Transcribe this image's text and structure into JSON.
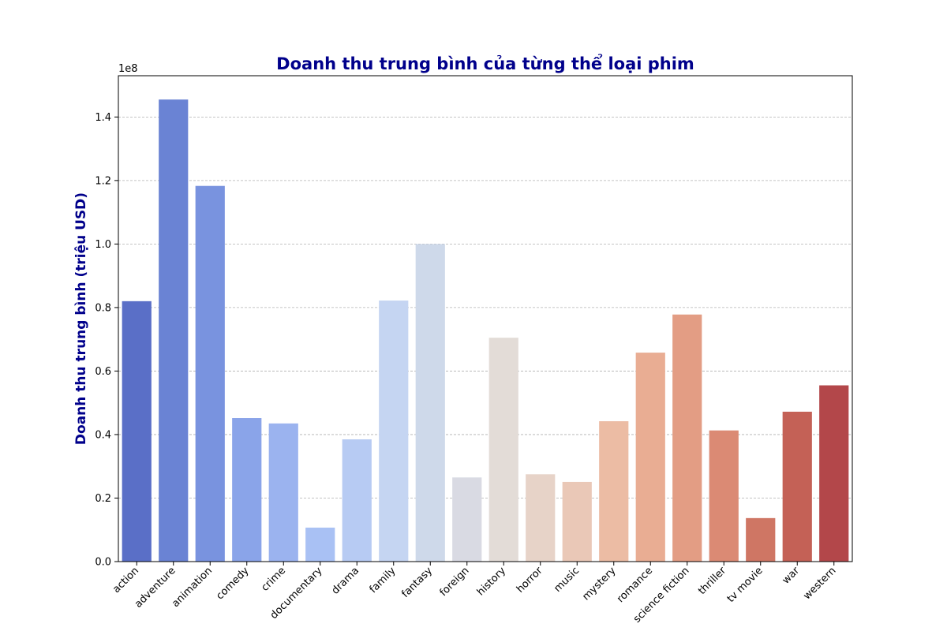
{
  "chart_data": {
    "type": "bar",
    "title": "Doanh thu trung bình của từng thể loại phim",
    "xlabel": "",
    "ylabel": "Doanh thu trung bình (triệu USD)",
    "offset_label": "1e8",
    "scale": 100000000,
    "ylim": [
      0,
      1.53
    ],
    "yticks": [
      0.0,
      0.2,
      0.4,
      0.6,
      0.8,
      1.0,
      1.2,
      1.4
    ],
    "ytick_labels": [
      "0.0",
      "0.2",
      "0.4",
      "0.6",
      "0.8",
      "1.0",
      "1.2",
      "1.4"
    ],
    "grid": "y",
    "categories": [
      "action",
      "adventure",
      "animation",
      "comedy",
      "crime",
      "documentary",
      "drama",
      "family",
      "fantasy",
      "foreign",
      "history",
      "horror",
      "music",
      "mystery",
      "romance",
      "science fiction",
      "thriller",
      "tv movie",
      "war",
      "western"
    ],
    "values": [
      0.82,
      1.455,
      1.183,
      0.452,
      0.435,
      0.107,
      0.385,
      0.822,
      1.0,
      0.265,
      0.705,
      0.275,
      0.251,
      0.442,
      0.658,
      0.778,
      0.413,
      0.137,
      0.472,
      0.555
    ],
    "colors": [
      "#5a6fc7",
      "#6a83d4",
      "#7993df",
      "#8aa4e9",
      "#9bb3ef",
      "#a9c1f4",
      "#b7cbf3",
      "#c5d5f2",
      "#ced9ea",
      "#d9dae3",
      "#e3dcd7",
      "#e7d3c8",
      "#eac8b7",
      "#ecbca4",
      "#e9ad93",
      "#e39d84",
      "#db8a74",
      "#cf7664",
      "#c46156",
      "#b3474a"
    ],
    "title_color": "#00008b",
    "ylabel_color": "#00008b"
  }
}
